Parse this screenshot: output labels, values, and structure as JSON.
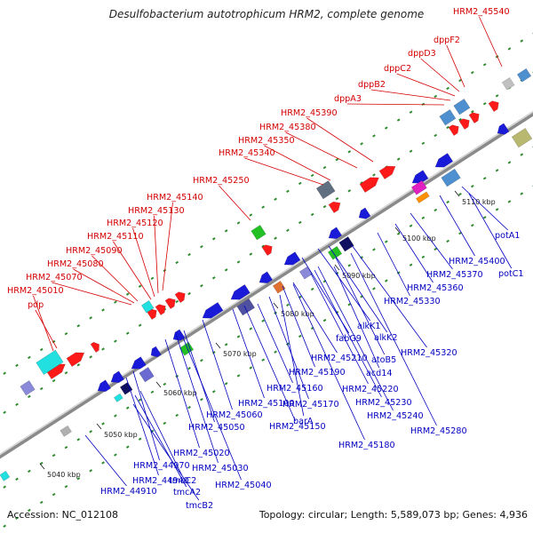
{
  "header": {
    "title": "Desulfobacterium autotrophicum HRM2, complete genome"
  },
  "footer": {
    "accession": "Accession: NC_012108",
    "topology": "Topology: circular; Length: 5,589,073 bp; Genes: 4,936"
  },
  "colors": {
    "forward_label": "#d40000",
    "reverse_label": "#0000c0",
    "backbone": "#8a8a8a",
    "tick": "#2e8b2e"
  },
  "scale_labels": [
    "5040 kbp",
    "5050 kbp",
    "5060 kbp",
    "5070 kbp",
    "5080 kbp",
    "5090 kbp",
    "5100 kbp",
    "5110 kbp"
  ],
  "forward_genes": [
    "HRM2_45540",
    "dppF2",
    "dppD3",
    "dppC2",
    "dppB2",
    "dppA3",
    "HRM2_45390",
    "HRM2_45380",
    "HRM2_45350",
    "HRM2_45340",
    "HRM2_45250",
    "HRM2_45140",
    "HRM2_45130",
    "HRM2_45120",
    "HRM2_45110",
    "HRM2_45090",
    "HRM2_45080",
    "HRM2_45070",
    "HRM2_45010",
    "pdp"
  ],
  "reverse_genes": [
    "potA1",
    "potC1",
    "HRM2_45400",
    "HRM2_45370",
    "HRM2_45360",
    "HRM2_45330",
    "alkK1",
    "alkK2",
    "fabG9",
    "atoB5",
    "HRM2_45320",
    "acd14",
    "HRM2_45210",
    "HRM2_45190",
    "HRM2_45220",
    "HRM2_45230",
    "HRM2_45240",
    "HRM2_45280",
    "HRM2_45160",
    "HRM2_45170",
    "HRM2_45100",
    "barA",
    "HRM2_45150",
    "HRM2_45060",
    "HRM2_45180",
    "HRM2_45050",
    "HRM2_45020",
    "HRM2_45030",
    "HRM2_44970",
    "HRM2_45040",
    "HRM2_44940",
    "tmcC2",
    "tmcA2",
    "HRM2_44910",
    "tmcB2"
  ]
}
